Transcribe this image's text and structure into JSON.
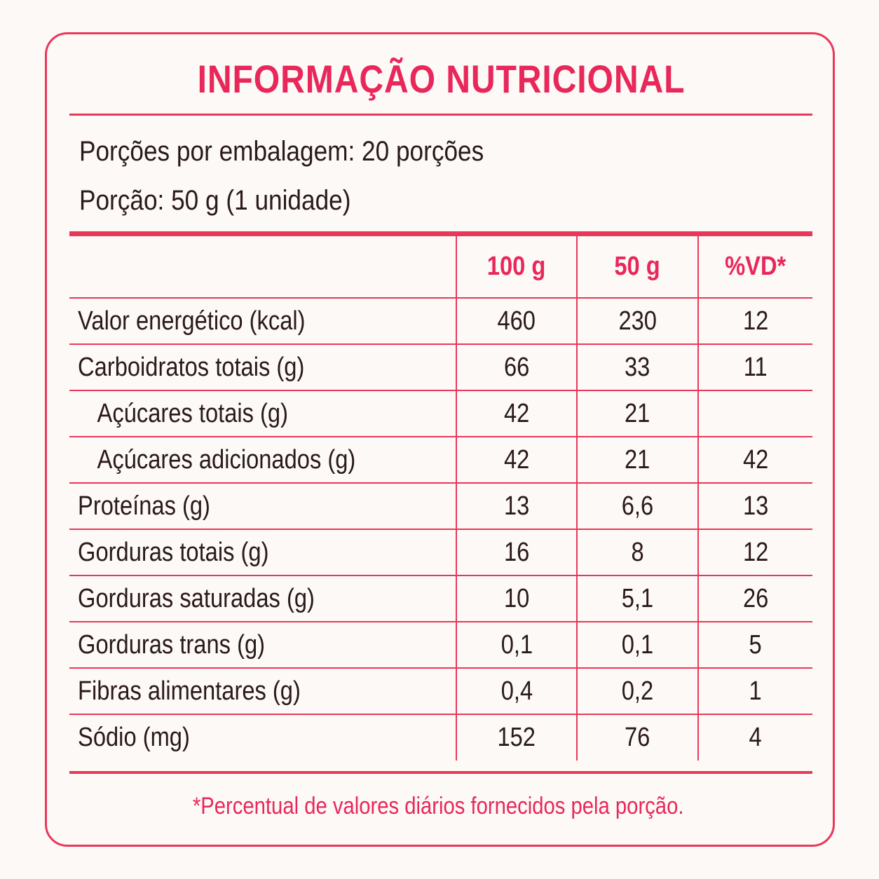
{
  "title": "INFORMAÇÃO NUTRICIONAL",
  "servings_per_package": "Porções por embalagem: 20 porções",
  "serving_size": "Porção: 50 g (1 unidade)",
  "columns": [
    "100 g",
    "50 g",
    "%VD*"
  ],
  "rows": [
    {
      "label": "Valor energético (kcal)",
      "v100": "460",
      "v50": "230",
      "vd": "12"
    },
    {
      "label": "Carboidratos totais (g)",
      "v100": "66",
      "v50": "33",
      "vd": "11"
    },
    {
      "label": "Açúcares totais (g)",
      "v100": "42",
      "v50": "21",
      "vd": ""
    },
    {
      "label": "Açúcares adicionados (g)",
      "v100": "42",
      "v50": "21",
      "vd": "42"
    },
    {
      "label": "Proteínas (g)",
      "v100": "13",
      "v50": "6,6",
      "vd": "13"
    },
    {
      "label": "Gorduras totais (g)",
      "v100": "16",
      "v50": "8",
      "vd": "12"
    },
    {
      "label": "Gorduras saturadas (g)",
      "v100": "10",
      "v50": "5,1",
      "vd": "26"
    },
    {
      "label": "Gorduras trans (g)",
      "v100": "0,1",
      "v50": "0,1",
      "vd": "5"
    },
    {
      "label": "Fibras alimentares (g)",
      "v100": "0,4",
      "v50": "0,2",
      "vd": "1"
    },
    {
      "label": "Sódio (mg)",
      "v100": "152",
      "v50": "76",
      "vd": "4"
    }
  ],
  "footnote": "*Percentual de valores diários fornecidos pela porção.",
  "colors": {
    "accent": "#e8275a",
    "text": "#2a1a1a",
    "background": "#fdf9f6"
  }
}
